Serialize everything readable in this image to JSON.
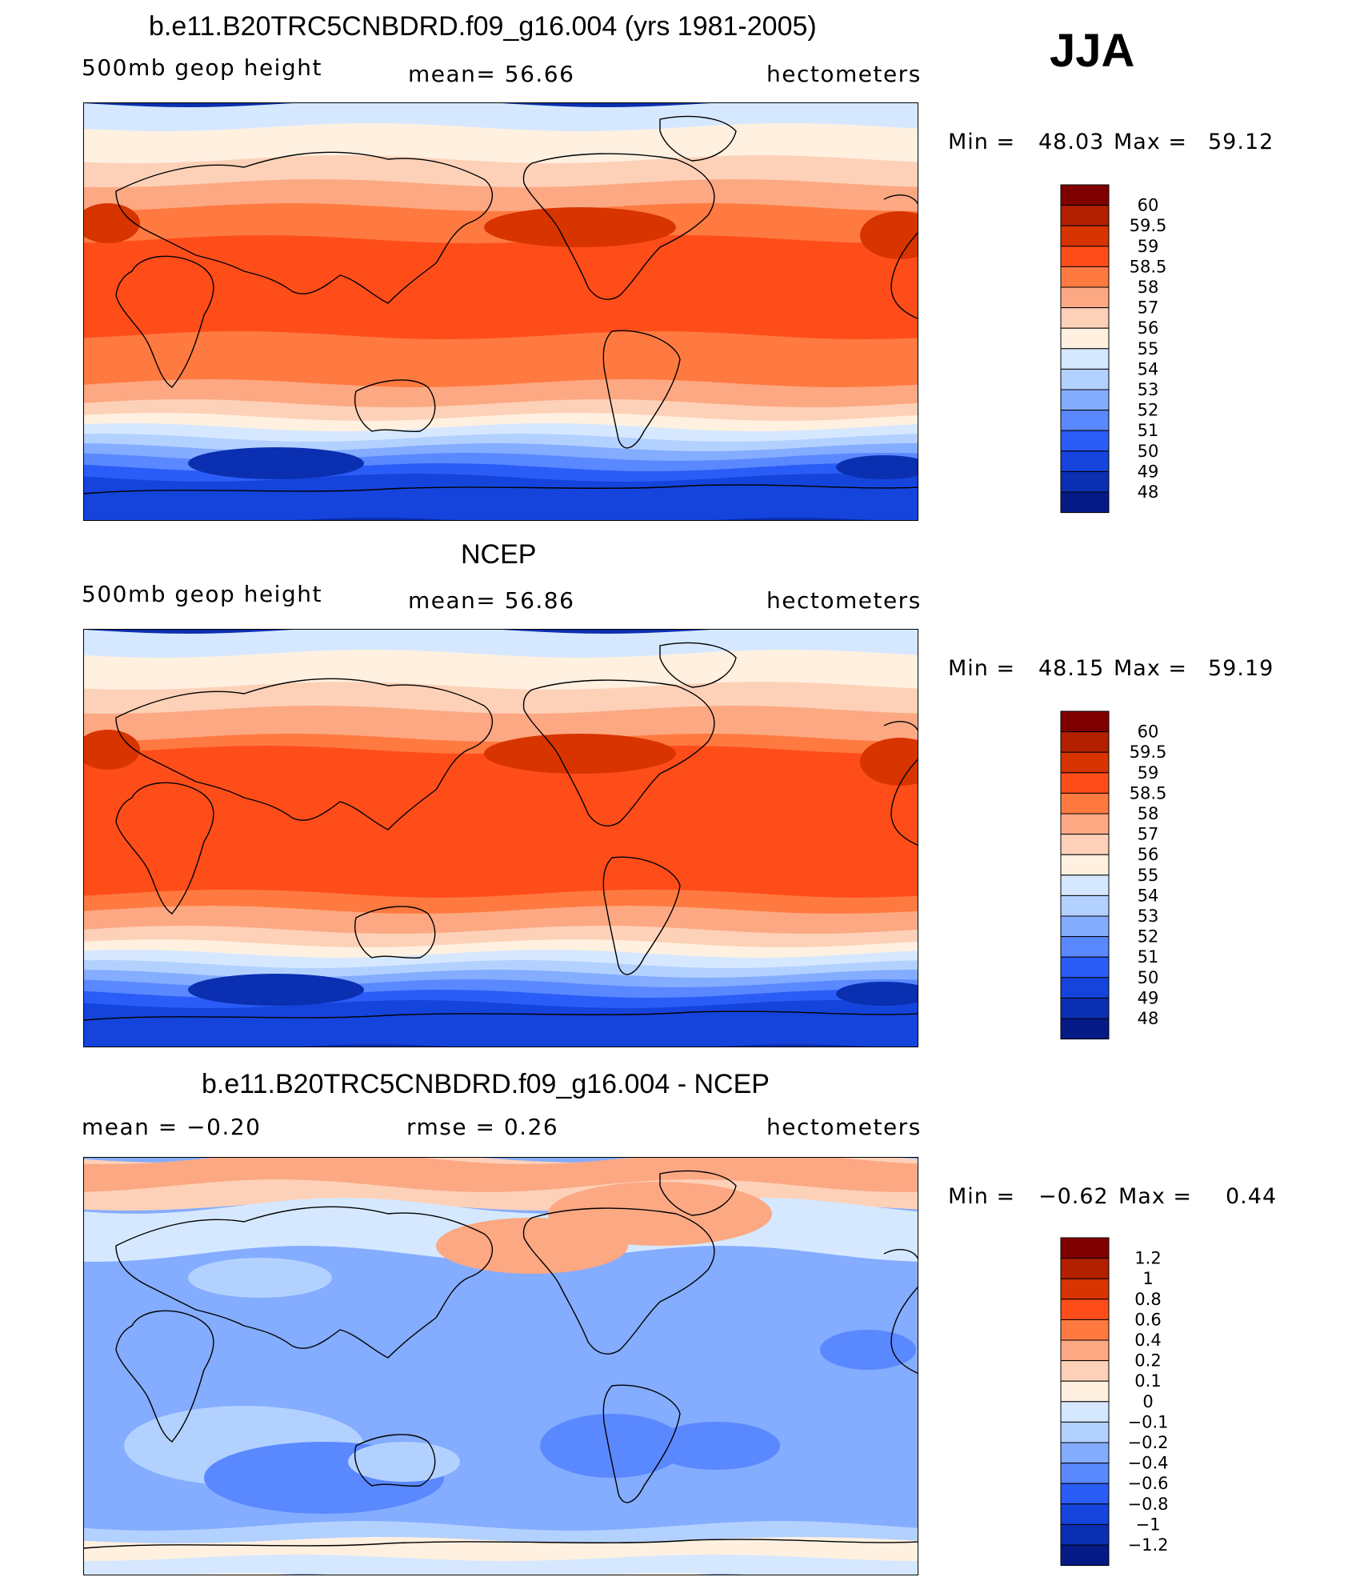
{
  "season": "JJA",
  "panels": [
    {
      "title": "b.e11.B20TRC5CNBDRD.f09_g16.004 (yrs 1981-2005)",
      "left": "500mb  geop  height",
      "center": "mean=   56.66",
      "right": "hectometers",
      "min_label": "Min  =",
      "min_val": "48.03",
      "max_label": "Max  =",
      "max_val": "59.12",
      "colorbar_labels": [
        "60",
        "59.5",
        "59",
        "58.5",
        "58",
        "57",
        "56",
        "55",
        "54",
        "53",
        "52",
        "51",
        "50",
        "49",
        "48"
      ],
      "field": "model"
    },
    {
      "title": "NCEP",
      "left": "500mb  geop  height",
      "center": "mean=   56.86",
      "right": "hectometers",
      "min_label": "Min  =",
      "min_val": "48.15",
      "max_label": "Max  =",
      "max_val": "59.19",
      "colorbar_labels": [
        "60",
        "59.5",
        "59",
        "58.5",
        "58",
        "57",
        "56",
        "55",
        "54",
        "53",
        "52",
        "51",
        "50",
        "49",
        "48"
      ],
      "field": "obs"
    },
    {
      "title": "b.e11.B20TRC5CNBDRD.f09_g16.004 - NCEP",
      "left": "mean =   −0.20",
      "center": "rmse =     0.26",
      "right": "hectometers",
      "min_label": "Min  =",
      "min_val": "−0.62",
      "max_label": "Max  =",
      "max_val": "0.44",
      "colorbar_labels": [
        "1.2",
        "1",
        "0.8",
        "0.6",
        "0.4",
        "0.2",
        "0.1",
        "0",
        "−0.1",
        "−0.2",
        "−0.4",
        "−0.6",
        "−0.8",
        "−1",
        "−1.2"
      ],
      "field": "diff"
    }
  ],
  "colors": {
    "palette": [
      "#800000",
      "#b22000",
      "#d83400",
      "#ff4d1a",
      "#ff7a40",
      "#fca883",
      "#fdd1b8",
      "#fff0e0",
      "#d6e8ff",
      "#b3d1ff",
      "#84acff",
      "#5a88ff",
      "#2a5cf7",
      "#1444dc",
      "#0a2fb0",
      "#051a85"
    ],
    "coast": "#000000"
  },
  "chart_data": [
    {
      "type": "heatmap",
      "title": "b.e11.B20TRC5CNBDRD.f09_g16.004 (yrs 1981-2005)",
      "variable": "500mb geop height",
      "units": "hectometers",
      "mean": 56.66,
      "min": 48.03,
      "max": 59.12,
      "levels": [
        48,
        49,
        50,
        51,
        52,
        53,
        54,
        55,
        56,
        57,
        58,
        58.5,
        59,
        59.5,
        60
      ]
    },
    {
      "type": "heatmap",
      "title": "NCEP",
      "variable": "500mb geop height",
      "units": "hectometers",
      "mean": 56.86,
      "min": 48.15,
      "max": 59.19,
      "levels": [
        48,
        49,
        50,
        51,
        52,
        53,
        54,
        55,
        56,
        57,
        58,
        58.5,
        59,
        59.5,
        60
      ]
    },
    {
      "type": "heatmap",
      "title": "b.e11.B20TRC5CNBDRD.f09_g16.004 - NCEP",
      "units": "hectometers",
      "mean": -0.2,
      "rmse": 0.26,
      "min": -0.62,
      "max": 0.44,
      "levels": [
        -1.2,
        -1,
        -0.8,
        -0.6,
        -0.4,
        -0.2,
        -0.1,
        0,
        0.1,
        0.2,
        0.4,
        0.6,
        0.8,
        1,
        1.2
      ]
    }
  ]
}
